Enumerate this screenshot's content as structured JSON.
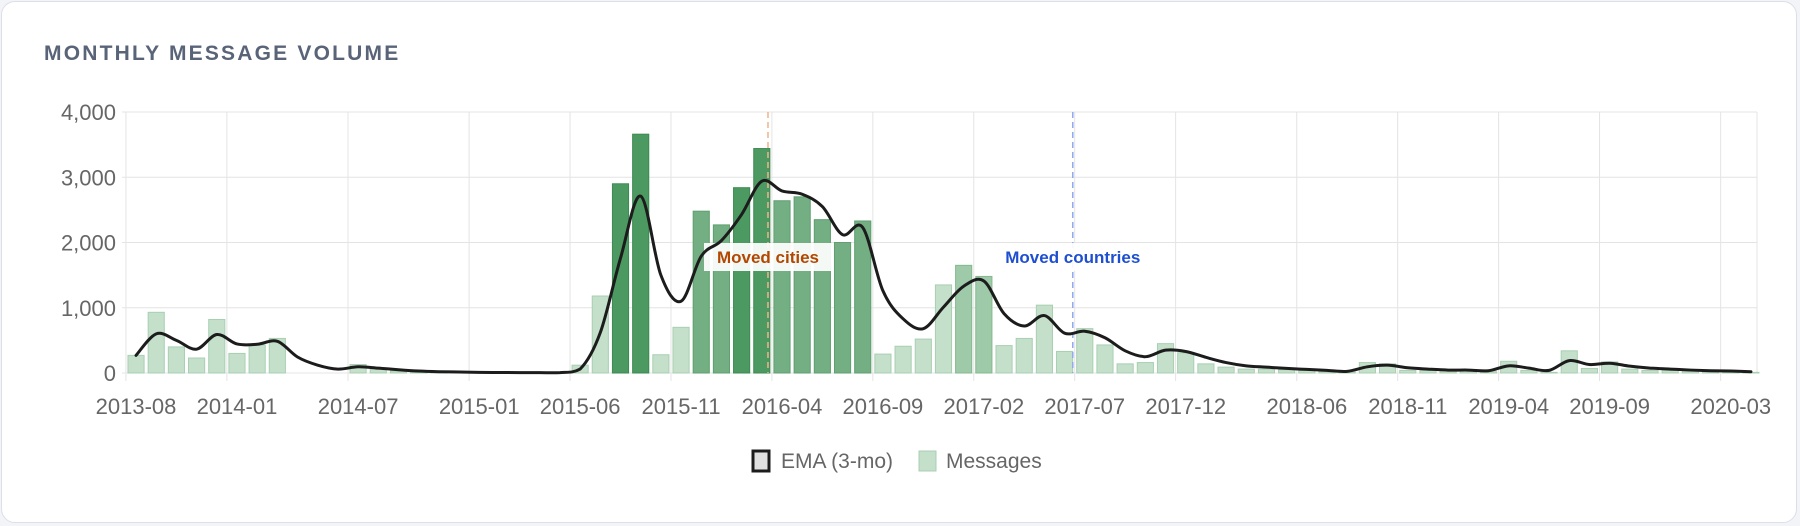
{
  "card": {
    "title": "MONTHLY MESSAGE VOLUME"
  },
  "chart_data": {
    "type": "bar",
    "title": "MONTHLY MESSAGE VOLUME",
    "xlabel": "",
    "ylabel": "",
    "ylim": [
      0,
      4000
    ],
    "y_ticks": [
      "0",
      "1,000",
      "2,000",
      "3,000",
      "4,000"
    ],
    "x_tick_labels": [
      "2013-08",
      "2014-01",
      "2014-07",
      "2015-01",
      "2015-06",
      "2015-11",
      "2016-04",
      "2016-09",
      "2017-02",
      "2017-07",
      "2017-12",
      "2018-06",
      "2018-11",
      "2019-04",
      "2019-09",
      "2020-03"
    ],
    "grid": true,
    "legend_position": "bottom",
    "categories": [
      "2013-08",
      "2013-09",
      "2013-10",
      "2013-11",
      "2013-12",
      "2014-01",
      "2014-02",
      "2014-03",
      "2014-04",
      "2014-05",
      "2014-06",
      "2014-07",
      "2014-08",
      "2014-09",
      "2014-10",
      "2014-11",
      "2014-12",
      "2015-01",
      "2015-02",
      "2015-03",
      "2015-04",
      "2015-05",
      "2015-06",
      "2015-07",
      "2015-08",
      "2015-09",
      "2015-10",
      "2015-11",
      "2015-12",
      "2016-01",
      "2016-02",
      "2016-03",
      "2016-04",
      "2016-05",
      "2016-06",
      "2016-07",
      "2016-08",
      "2016-09",
      "2016-10",
      "2016-11",
      "2016-12",
      "2017-01",
      "2017-02",
      "2017-03",
      "2017-04",
      "2017-05",
      "2017-06",
      "2017-07",
      "2017-08",
      "2017-09",
      "2017-10",
      "2017-11",
      "2017-12",
      "2018-01",
      "2018-02",
      "2018-03",
      "2018-04",
      "2018-05",
      "2018-06",
      "2018-07",
      "2018-08",
      "2018-09",
      "2018-10",
      "2018-11",
      "2018-12",
      "2019-01",
      "2019-02",
      "2019-03",
      "2019-04",
      "2019-05",
      "2019-06",
      "2019-07",
      "2019-08",
      "2019-09",
      "2019-10",
      "2019-11",
      "2019-12",
      "2020-01",
      "2020-02",
      "2020-03",
      "2020-04"
    ],
    "series": [
      {
        "name": "Messages",
        "values": [
          270,
          930,
          400,
          230,
          820,
          300,
          430,
          530,
          0,
          0,
          0,
          130,
          60,
          30,
          10,
          10,
          5,
          5,
          5,
          5,
          5,
          5,
          120,
          1180,
          2900,
          3660,
          280,
          700,
          2480,
          2270,
          2840,
          3440,
          2640,
          2700,
          2350,
          2000,
          2330,
          290,
          410,
          520,
          1350,
          1650,
          1480,
          420,
          530,
          1040,
          330,
          680,
          430,
          140,
          160,
          450,
          310,
          140,
          90,
          60,
          60,
          50,
          40,
          20,
          10,
          160,
          140,
          40,
          40,
          30,
          40,
          20,
          180,
          40,
          10,
          340,
          70,
          170,
          60,
          40,
          40,
          30,
          20,
          20,
          10
        ]
      },
      {
        "name": "EMA (3-mo)",
        "values": [
          270,
          600,
          500,
          365,
          590,
          445,
          440,
          485,
          245,
          120,
          60,
          95,
          75,
          50,
          30,
          20,
          15,
          10,
          8,
          6,
          5,
          5,
          60,
          620,
          1760,
          2710,
          1500,
          1100,
          1790,
          2030,
          2430,
          2940,
          2790,
          2740,
          2550,
          2120,
          2230,
          1260,
          830,
          680,
          1010,
          1330,
          1410,
          910,
          720,
          880,
          610,
          640,
          540,
          340,
          250,
          350,
          330,
          240,
          160,
          110,
          90,
          70,
          55,
          40,
          25,
          95,
          120,
          80,
          60,
          45,
          45,
          35,
          110,
          75,
          40,
          190,
          130,
          150,
          105,
          75,
          60,
          45,
          35,
          30,
          20
        ]
      }
    ],
    "annotations": [
      {
        "label": "Moved cities",
        "x": "2016-04",
        "color": "#b34700"
      },
      {
        "label": "Moved countries",
        "x": "2017-07",
        "color": "#1f4fd1"
      }
    ]
  }
}
